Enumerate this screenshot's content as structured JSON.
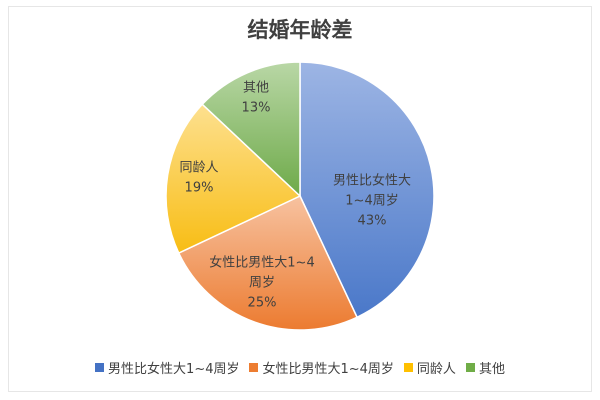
{
  "chart_data": {
    "type": "pie",
    "title": "结婚年龄差",
    "slices": [
      {
        "label": "男性比女性大1~4周岁",
        "label_lines": [
          "男性比女性大",
          "1~4周岁"
        ],
        "percent_label": "43%",
        "value": 43,
        "color": "#4472c4"
      },
      {
        "label": "女性比男性大1~4周岁",
        "label_lines": [
          "女性比男性大1~4",
          "周岁"
        ],
        "percent_label": "25%",
        "value": 25,
        "color": "#ed7d31"
      },
      {
        "label": "同龄人",
        "label_lines": [
          "同龄人"
        ],
        "percent_label": "19%",
        "value": 19,
        "color": "#ffc000"
      },
      {
        "label": "其他",
        "label_lines": [
          "其他"
        ],
        "percent_label": "13%",
        "value": 13,
        "color": "#70ad47"
      }
    ],
    "start_angle": "12 o'clock",
    "direction": "clockwise",
    "legend_position": "bottom"
  }
}
